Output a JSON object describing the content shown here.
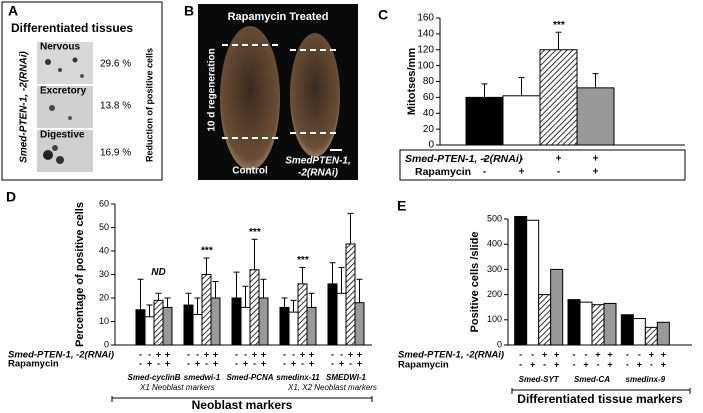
{
  "panel_a": {
    "letter": "A",
    "title": "Differentiated tissues",
    "rnai": "Smed-PTEN-1, -2(RNAi)",
    "side_label": "Reduction of positive cells",
    "tissues": [
      {
        "name": "Nervous",
        "percent": "29.6 %"
      },
      {
        "name": "Excretory",
        "percent": "13.8 %"
      },
      {
        "name": "Digestive",
        "percent": "16.9 %"
      }
    ]
  },
  "panel_b": {
    "letter": "B",
    "title": "Rapamycin Treated",
    "side_label": "10 d regeneration",
    "control": "Control",
    "rnai_lines": [
      "SmedPTEN-1,",
      "-2(RNAi)"
    ]
  },
  "chart_data": [
    {
      "type": "bar",
      "letter": "C",
      "ylabel": "Mitotses/mm",
      "ylim": [
        0,
        160
      ],
      "yticks": [
        0,
        20,
        40,
        60,
        80,
        100,
        120,
        140,
        160
      ],
      "series": [
        {
          "color": "#000000",
          "values": [
            60
          ],
          "errors": [
            17
          ]
        },
        {
          "color": "#ffffff",
          "values": [
            62
          ],
          "errors": [
            23
          ]
        },
        {
          "color": "hatch",
          "values": [
            120
          ],
          "errors": [
            22
          ]
        },
        {
          "color": "#999999",
          "values": [
            72
          ],
          "errors": [
            18
          ]
        }
      ],
      "annotations": [
        "***"
      ],
      "row_labels": [
        "Smed-PTEN-1, -2(RNAi)",
        "Rapamycin"
      ],
      "row_signs": [
        [
          "-",
          "-",
          "+",
          "+"
        ],
        [
          "-",
          "+",
          "-",
          "+"
        ]
      ]
    },
    {
      "type": "bar",
      "letter": "D",
      "ylabel": "Percentage of positive cells",
      "ylim": [
        0,
        60
      ],
      "yticks": [
        0,
        10,
        20,
        30,
        40,
        50,
        60
      ],
      "categories": [
        "Smed-cyclinB",
        "smedwi-1",
        "Smed-PCNA",
        "smedinx-11",
        "SMEDWI-1"
      ],
      "series": [
        {
          "color": "#000000",
          "values": [
            15,
            17,
            20,
            16,
            26
          ],
          "errors": [
            13,
            5,
            11,
            4,
            9
          ]
        },
        {
          "color": "#ffffff",
          "values": [
            12,
            13,
            16,
            14,
            22
          ],
          "errors": [
            5,
            7,
            9,
            5,
            11
          ]
        },
        {
          "color": "hatch",
          "values": [
            19,
            30,
            32,
            26,
            43
          ],
          "errors": [
            3,
            7,
            13,
            7,
            13
          ]
        },
        {
          "color": "#999999",
          "values": [
            16,
            20,
            20,
            16,
            18
          ],
          "errors": [
            4,
            7,
            8,
            6,
            10
          ]
        }
      ],
      "annotations": [
        "ND",
        "***",
        "***",
        "***",
        null
      ],
      "row_labels": [
        "Smed-PTEN-1, -2(RNAi)",
        "Rapamycin"
      ],
      "row_signs": [
        [
          "-",
          "-",
          "+",
          "+"
        ],
        [
          "-",
          "+",
          "-",
          "+"
        ]
      ],
      "subgroup_labels": [
        "X1 Neoblast markers",
        "X1, X2 Neoblast markers"
      ],
      "group_title": "Neoblast markers"
    },
    {
      "type": "bar",
      "letter": "E",
      "ylabel": "Positive cells /slide",
      "ylim": [
        0,
        500
      ],
      "yticks": [
        0,
        100,
        200,
        300,
        400,
        500
      ],
      "categories": [
        "Smed-SYT",
        "Smed-CA",
        "smedinx-9"
      ],
      "series": [
        {
          "color": "#000000",
          "values": [
            510,
            180,
            120
          ]
        },
        {
          "color": "#ffffff",
          "values": [
            495,
            170,
            105
          ]
        },
        {
          "color": "hatch",
          "values": [
            200,
            160,
            70
          ]
        },
        {
          "color": "#999999",
          "values": [
            300,
            165,
            90
          ]
        }
      ],
      "row_labels": [
        "Smed-PTEN-1, -2(RNAi)",
        "Rapamycin"
      ],
      "row_signs": [
        [
          "-",
          "-",
          "+",
          "+"
        ],
        [
          "-",
          "+",
          "-",
          "+"
        ]
      ],
      "group_title": "Differentiated tissue markers"
    }
  ]
}
